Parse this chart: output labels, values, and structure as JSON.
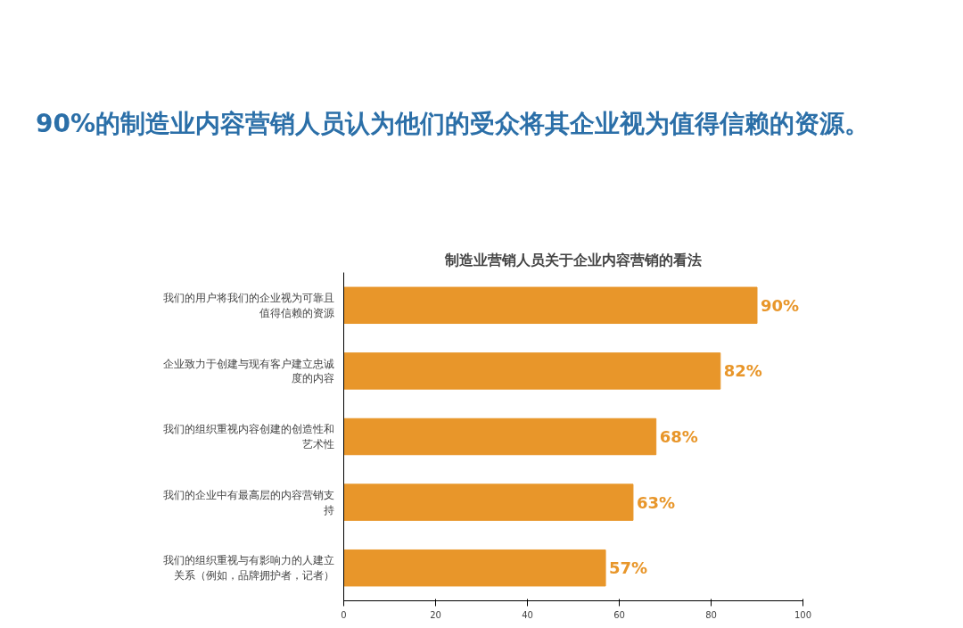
{
  "chart_data": {
    "type": "bar",
    "orientation": "horizontal",
    "title": "90%的制造业内容营销人员认为他们的受众将其企业视为值得信赖的资源。",
    "subtitle": "制造业营销人员关于企业内容营销的看法",
    "categories": [
      "我们的用户将我们的企业视为可靠且值得信赖的资源",
      "企业致力于创建与现有客户建立忠诚度的内容",
      "我们的组织重视内容创建的创造性和艺术性",
      "我们的企业中有最高层的内容营销支持",
      "我们的组织重视与有影响力的人建立关系（例如，品牌拥护者，记者）"
    ],
    "values": [
      90,
      82,
      68,
      63,
      57
    ],
    "color": "#e8962a",
    "value_labels": [
      "90%",
      "82%",
      "68%",
      "63%",
      "57%"
    ],
    "xlim": [
      0,
      100
    ],
    "xticks": [
      0,
      20,
      40,
      60,
      80,
      100
    ],
    "grid": false
  }
}
